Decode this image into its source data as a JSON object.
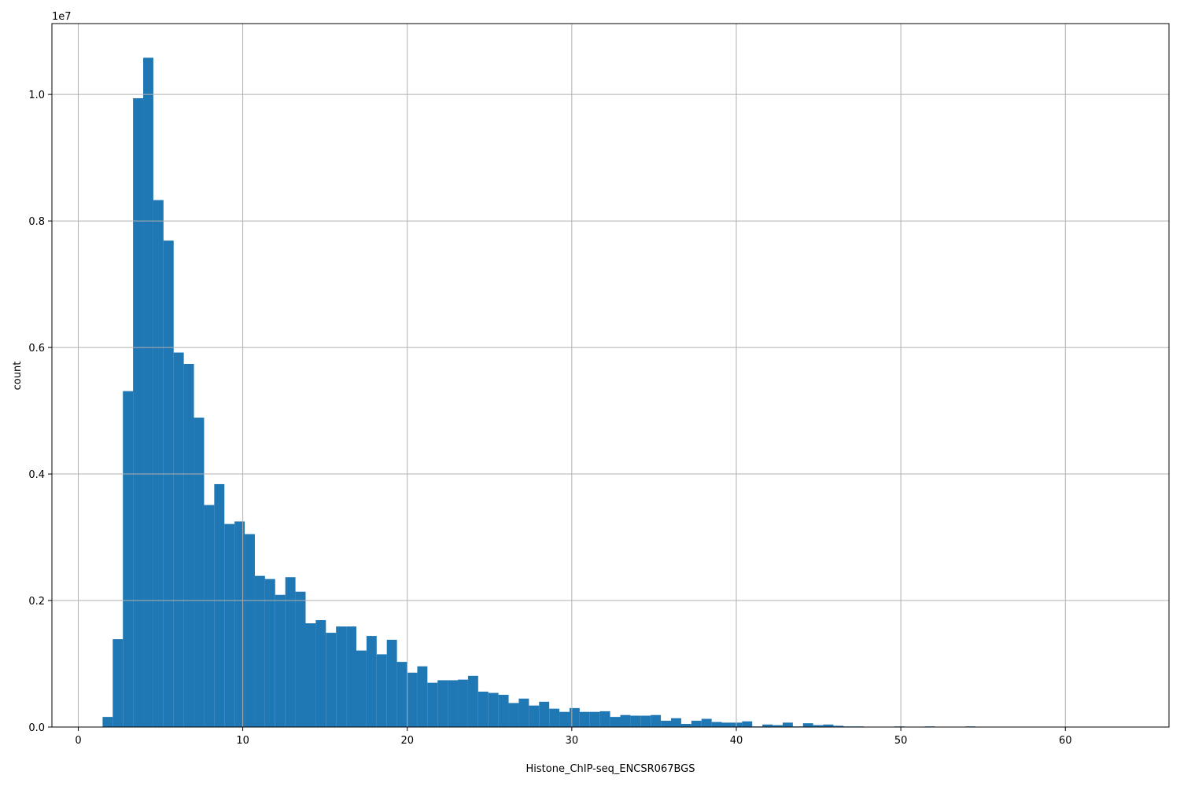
{
  "chart_data": {
    "type": "histogram",
    "offset_label": "1e7",
    "xlabel": "Histone_ChIP-seq_ENCSR067BGS",
    "ylabel": "count",
    "color": "#1f77b4",
    "grid": true,
    "bins": [
      1.48,
      2.097,
      2.714,
      3.331,
      3.948,
      4.565,
      5.182,
      5.799,
      6.416,
      7.033,
      7.65,
      8.267,
      8.884,
      9.501,
      10.118,
      10.735,
      11.352,
      11.969,
      12.586,
      13.203,
      13.82,
      14.437,
      15.054,
      15.671,
      16.288,
      16.905,
      17.522,
      18.139,
      18.756,
      19.373,
      19.99,
      20.607,
      21.224,
      21.841,
      22.458,
      23.075,
      23.692,
      24.309,
      24.926,
      25.543,
      26.16,
      26.777,
      27.394,
      28.011,
      28.628,
      29.245,
      29.862,
      30.479,
      31.096,
      31.713,
      32.33,
      32.947,
      33.564,
      34.181,
      34.798,
      35.415,
      36.032,
      36.649,
      37.266,
      37.883,
      38.5,
      39.117,
      39.734,
      40.351,
      40.968,
      41.585,
      42.202,
      42.819,
      43.436,
      44.053,
      44.67,
      45.287,
      45.904,
      46.521,
      47.138,
      47.755,
      48.372,
      48.989,
      49.606,
      50.223,
      50.84,
      51.457,
      52.074,
      52.691,
      53.308,
      53.925,
      54.542,
      55.159,
      55.776,
      56.393,
      57.01,
      57.627,
      58.244,
      58.861,
      59.478,
      60.095,
      60.712,
      61.329,
      61.946,
      62.563,
      63.18
    ],
    "counts": [
      160000,
      1390000,
      5310000,
      9940000,
      10580000,
      8330000,
      7690000,
      5920000,
      5740000,
      4890000,
      3510000,
      3840000,
      3210000,
      3250000,
      3050000,
      2390000,
      2340000,
      2090000,
      2370000,
      2140000,
      1640000,
      1690000,
      1490000,
      1590000,
      1590000,
      1210000,
      1440000,
      1150000,
      1380000,
      1030000,
      860000,
      960000,
      700000,
      740000,
      740000,
      750000,
      810000,
      560000,
      540000,
      510000,
      380000,
      450000,
      340000,
      400000,
      290000,
      240000,
      300000,
      240000,
      240000,
      250000,
      160000,
      190000,
      180000,
      180000,
      190000,
      100000,
      140000,
      50000,
      100000,
      130000,
      80000,
      70000,
      70000,
      90000,
      10000,
      40000,
      30000,
      70000,
      10000,
      60000,
      30000,
      40000,
      20000,
      10000,
      10000,
      0,
      0,
      0,
      10000,
      0,
      0,
      10000,
      0,
      0,
      0,
      10000,
      0,
      0,
      0,
      0,
      0,
      0,
      0,
      0,
      0,
      0,
      0,
      0,
      0,
      0
    ],
    "xlim": [
      -1.6,
      66.3
    ],
    "ylim": [
      0,
      11120000
    ],
    "xticks": [
      0,
      10,
      20,
      30,
      40,
      50,
      60
    ],
    "yticks": [
      {
        "value": 0,
        "label": "0.0"
      },
      {
        "value": 2000000,
        "label": "0.2"
      },
      {
        "value": 4000000,
        "label": "0.4"
      },
      {
        "value": 6000000,
        "label": "0.6"
      },
      {
        "value": 8000000,
        "label": "0.8"
      },
      {
        "value": 10000000,
        "label": "1.0"
      }
    ]
  }
}
